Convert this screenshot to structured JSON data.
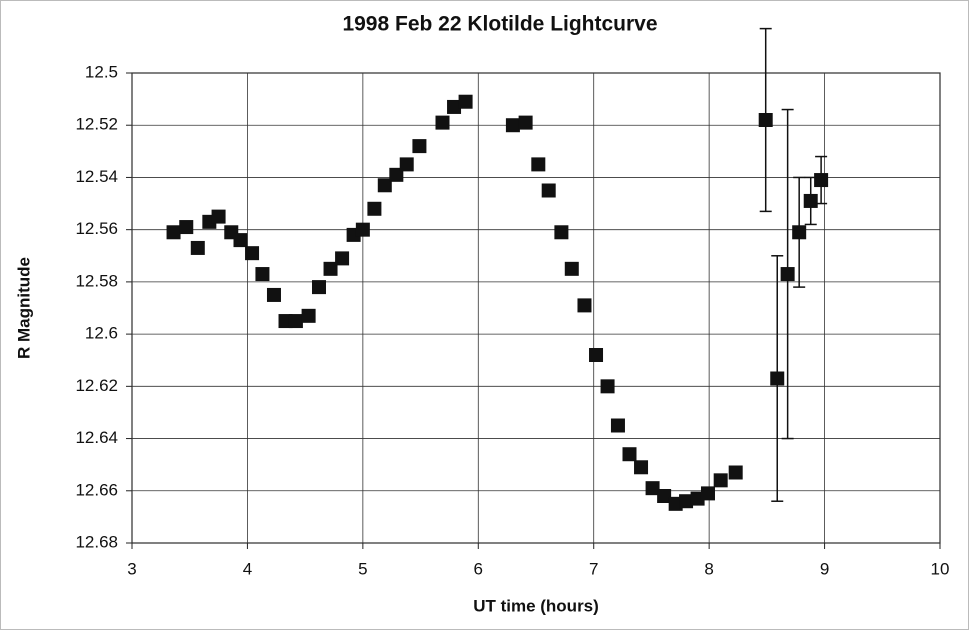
{
  "chart_data": {
    "type": "scatter",
    "title": "1998 Feb 22 Klotilde Lightcurve",
    "x_label": "UT time (hours)",
    "y_label": "R Magnitude",
    "xlim": [
      3,
      10
    ],
    "xticks": [
      3,
      4,
      5,
      6,
      7,
      8,
      9,
      10
    ],
    "ylim": [
      12.5,
      12.68
    ],
    "y_inverted": true,
    "yticks": [
      12.5,
      12.52,
      12.54,
      12.56,
      12.58,
      12.6,
      12.62,
      12.64,
      12.66,
      12.68
    ],
    "grid": true,
    "series": [
      {
        "color": "#111111",
        "x": [
          3.36,
          3.47,
          3.57,
          3.67,
          3.75,
          3.86,
          3.94,
          4.04,
          4.13,
          4.23,
          4.33,
          4.42,
          4.53,
          4.62,
          4.72,
          4.82,
          4.92,
          5.0,
          5.1,
          5.19,
          5.29,
          5.38,
          5.49,
          5.69,
          5.79,
          5.89,
          6.3,
          6.41,
          6.52,
          6.61,
          6.72,
          6.81,
          6.92,
          7.02,
          7.12,
          7.21,
          7.31,
          7.41,
          7.51,
          7.61,
          7.71,
          7.8,
          7.9,
          7.99,
          8.1,
          8.23,
          8.49,
          8.59,
          8.68,
          8.78,
          8.88,
          8.97
        ],
        "values": [
          12.561,
          12.559,
          12.567,
          12.557,
          12.555,
          12.561,
          12.564,
          12.569,
          12.577,
          12.585,
          12.595,
          12.595,
          12.593,
          12.582,
          12.575,
          12.571,
          12.562,
          12.56,
          12.552,
          12.543,
          12.539,
          12.535,
          12.528,
          12.519,
          12.513,
          12.511,
          12.52,
          12.519,
          12.535,
          12.545,
          12.561,
          12.575,
          12.589,
          12.608,
          12.62,
          12.635,
          12.646,
          12.651,
          12.659,
          12.662,
          12.665,
          12.664,
          12.663,
          12.661,
          12.656,
          12.653,
          12.518,
          12.617,
          12.577,
          12.561,
          12.549,
          12.541
        ],
        "errors": [
          0.002,
          0.002,
          0.002,
          0.002,
          0.002,
          0.002,
          0.002,
          0.002,
          0.002,
          0.002,
          0.002,
          0.002,
          0.002,
          0.002,
          0.002,
          0.002,
          0.002,
          0.002,
          0.002,
          0.002,
          0.002,
          0.002,
          0.002,
          0.002,
          0.002,
          0.002,
          0.002,
          0.002,
          0.002,
          0.002,
          0.002,
          0.002,
          0.002,
          0.002,
          0.002,
          0.002,
          0.002,
          0.002,
          0.002,
          0.002,
          0.002,
          0.002,
          0.002,
          0.002,
          0.002,
          0.002,
          0.035,
          0.047,
          0.063,
          0.021,
          0.009,
          0.009
        ]
      }
    ]
  }
}
